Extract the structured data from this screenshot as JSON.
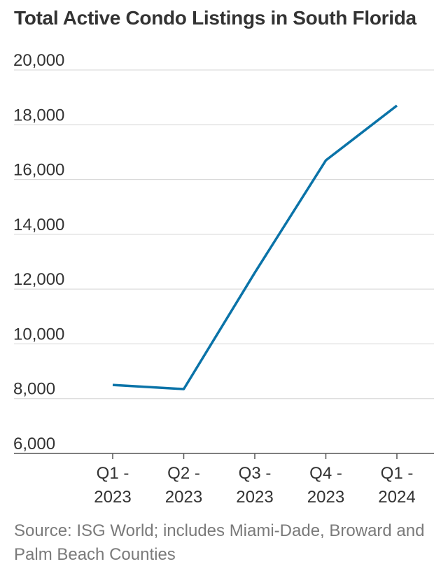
{
  "chart_data": {
    "type": "line",
    "title": "Total Active Condo Listings in South Florida",
    "categories": [
      [
        "Q1 -",
        "2023"
      ],
      [
        "Q2 -",
        "2023"
      ],
      [
        "Q3 -",
        "2023"
      ],
      [
        "Q4 -",
        "2023"
      ],
      [
        "Q1 -",
        "2024"
      ]
    ],
    "series": [
      {
        "values": [
          8500,
          8350,
          12600,
          16700,
          18700
        ],
        "color": "#0a73a8"
      }
    ],
    "yticks": [
      6000,
      8000,
      10000,
      12000,
      14000,
      16000,
      18000,
      20000
    ],
    "ylim": [
      6000,
      20000
    ],
    "grid": true,
    "source": "Source: ISG World; includes Miami-Dade, Broward and Palm Beach Counties"
  }
}
